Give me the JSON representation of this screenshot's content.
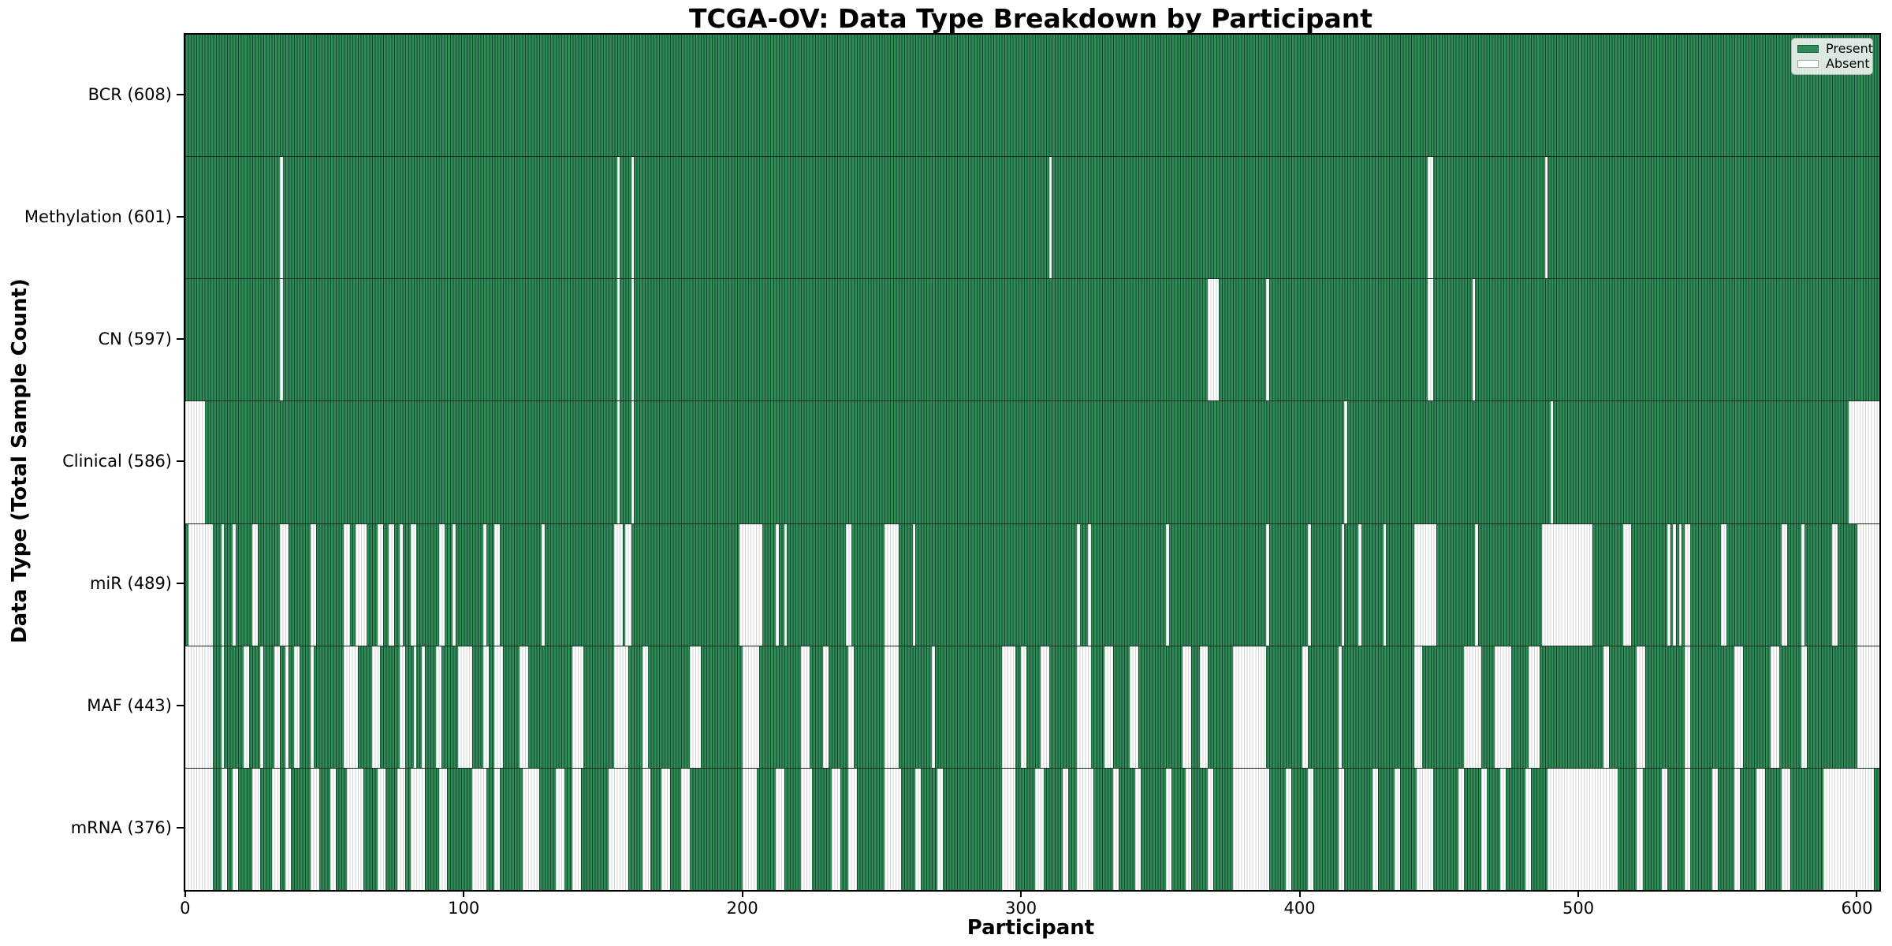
{
  "title": "TCGA-OV: Data Type Breakdown by Participant",
  "chart_data": {
    "type": "heatmap",
    "title": "TCGA-OV: Data Type Breakdown by Participant",
    "xlabel": "Participant",
    "ylabel": "Data Type (Total Sample Count)",
    "x_ticks": [
      0,
      100,
      200,
      300,
      400,
      500,
      600
    ],
    "n_participants": 608,
    "grid": false,
    "legend_position": "upper right",
    "colors": {
      "present": "#2e8b57",
      "absent": "#ffffff",
      "bar_edge": "#17402a",
      "background": "#ffffff"
    },
    "legend": [
      {
        "label": "Present",
        "color": "#2e8b57"
      },
      {
        "label": "Absent",
        "color": "#ffffff"
      }
    ],
    "rows": [
      {
        "name": "BCR",
        "label": "BCR (608)",
        "total_present": 608,
        "absent_ranges": []
      },
      {
        "name": "Methylation",
        "label": "Methylation (601)",
        "total_present": 601,
        "absent_ranges": [
          [
            34,
            34
          ],
          [
            155,
            155
          ],
          [
            160,
            160
          ],
          [
            310,
            310
          ],
          [
            446,
            447
          ],
          [
            488,
            488
          ]
        ]
      },
      {
        "name": "CN",
        "label": "CN (597)",
        "total_present": 597,
        "absent_ranges": [
          [
            34,
            34
          ],
          [
            155,
            155
          ],
          [
            160,
            160
          ],
          [
            367,
            370
          ],
          [
            388,
            388
          ],
          [
            446,
            447
          ],
          [
            462,
            462
          ]
        ]
      },
      {
        "name": "Clinical",
        "label": "Clinical (586)",
        "total_present": 586,
        "absent_ranges": [
          [
            0,
            6
          ],
          [
            155,
            155
          ],
          [
            160,
            160
          ],
          [
            416,
            416
          ],
          [
            490,
            490
          ],
          [
            597,
            607
          ]
        ]
      },
      {
        "name": "miR",
        "label": "miR (489)",
        "total_present": 489,
        "absent_ranges": [
          [
            1,
            9
          ],
          [
            13,
            13
          ],
          [
            17,
            17
          ],
          [
            24,
            25
          ],
          [
            34,
            36
          ],
          [
            45,
            46
          ],
          [
            57,
            58
          ],
          [
            61,
            64
          ],
          [
            69,
            70
          ],
          [
            73,
            74
          ],
          [
            77,
            77
          ],
          [
            81,
            82
          ],
          [
            91,
            92
          ],
          [
            96,
            96
          ],
          [
            107,
            107
          ],
          [
            111,
            112
          ],
          [
            128,
            128
          ],
          [
            154,
            156
          ],
          [
            158,
            159
          ],
          [
            199,
            206
          ],
          [
            212,
            212
          ],
          [
            215,
            215
          ],
          [
            237,
            238
          ],
          [
            251,
            255
          ],
          [
            261,
            261
          ],
          [
            320,
            320
          ],
          [
            324,
            324
          ],
          [
            352,
            352
          ],
          [
            388,
            388
          ],
          [
            403,
            403
          ],
          [
            415,
            415
          ],
          [
            421,
            421
          ],
          [
            430,
            430
          ],
          [
            441,
            448
          ],
          [
            463,
            463
          ],
          [
            487,
            504
          ],
          [
            516,
            518
          ],
          [
            532,
            532
          ],
          [
            534,
            534
          ],
          [
            536,
            536
          ],
          [
            538,
            539
          ],
          [
            551,
            552
          ],
          [
            573,
            574
          ],
          [
            580,
            580
          ],
          [
            591,
            592
          ],
          [
            600,
            607
          ]
        ]
      },
      {
        "name": "MAF",
        "label": "MAF (443)",
        "total_present": 443,
        "absent_ranges": [
          [
            0,
            9
          ],
          [
            13,
            13
          ],
          [
            21,
            22
          ],
          [
            27,
            27
          ],
          [
            32,
            33
          ],
          [
            36,
            36
          ],
          [
            39,
            40
          ],
          [
            45,
            45
          ],
          [
            57,
            61
          ],
          [
            67,
            69
          ],
          [
            77,
            78
          ],
          [
            82,
            82
          ],
          [
            85,
            85
          ],
          [
            90,
            91
          ],
          [
            98,
            102
          ],
          [
            107,
            108
          ],
          [
            111,
            113
          ],
          [
            120,
            122
          ],
          [
            139,
            142
          ],
          [
            154,
            158
          ],
          [
            164,
            165
          ],
          [
            181,
            184
          ],
          [
            200,
            205
          ],
          [
            221,
            223
          ],
          [
            229,
            230
          ],
          [
            238,
            239
          ],
          [
            251,
            255
          ],
          [
            268,
            268
          ],
          [
            293,
            297
          ],
          [
            300,
            301
          ],
          [
            307,
            309
          ],
          [
            320,
            324
          ],
          [
            330,
            332
          ],
          [
            339,
            341
          ],
          [
            358,
            360
          ],
          [
            364,
            366
          ],
          [
            376,
            387
          ],
          [
            401,
            402
          ],
          [
            414,
            414
          ],
          [
            441,
            443
          ],
          [
            459,
            464
          ],
          [
            470,
            475
          ],
          [
            482,
            485
          ],
          [
            509,
            510
          ],
          [
            521,
            523
          ],
          [
            538,
            539
          ],
          [
            556,
            558
          ],
          [
            569,
            571
          ],
          [
            580,
            581
          ],
          [
            600,
            607
          ]
        ]
      },
      {
        "name": "mRNA",
        "label": "mRNA (376)",
        "total_present": 376,
        "absent_ranges": [
          [
            0,
            9
          ],
          [
            13,
            14
          ],
          [
            17,
            18
          ],
          [
            24,
            26
          ],
          [
            31,
            33
          ],
          [
            36,
            37
          ],
          [
            45,
            47
          ],
          [
            52,
            53
          ],
          [
            58,
            63
          ],
          [
            69,
            71
          ],
          [
            76,
            78
          ],
          [
            81,
            85
          ],
          [
            91,
            93
          ],
          [
            103,
            107
          ],
          [
            111,
            112
          ],
          [
            121,
            126
          ],
          [
            133,
            135
          ],
          [
            139,
            141
          ],
          [
            152,
            158
          ],
          [
            164,
            166
          ],
          [
            171,
            173
          ],
          [
            178,
            180
          ],
          [
            200,
            204
          ],
          [
            212,
            214
          ],
          [
            221,
            224
          ],
          [
            232,
            234
          ],
          [
            238,
            240
          ],
          [
            251,
            256
          ],
          [
            262,
            263
          ],
          [
            270,
            271
          ],
          [
            293,
            297
          ],
          [
            305,
            307
          ],
          [
            315,
            316
          ],
          [
            320,
            325
          ],
          [
            333,
            334
          ],
          [
            341,
            342
          ],
          [
            352,
            353
          ],
          [
            359,
            360
          ],
          [
            367,
            368
          ],
          [
            376,
            388
          ],
          [
            395,
            396
          ],
          [
            403,
            404
          ],
          [
            414,
            415
          ],
          [
            426,
            427
          ],
          [
            434,
            435
          ],
          [
            442,
            447
          ],
          [
            457,
            458
          ],
          [
            465,
            466
          ],
          [
            472,
            473
          ],
          [
            481,
            482
          ],
          [
            489,
            513
          ],
          [
            521,
            522
          ],
          [
            530,
            531
          ],
          [
            538,
            539
          ],
          [
            548,
            549
          ],
          [
            556,
            557
          ],
          [
            564,
            566
          ],
          [
            573,
            575
          ],
          [
            588,
            605
          ]
        ]
      }
    ]
  }
}
